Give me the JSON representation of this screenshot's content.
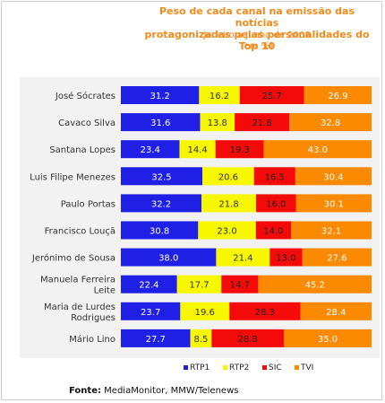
{
  "chart_data": {
    "type": "bar",
    "stacked": "100%",
    "orientation": "horizontal",
    "title": "Peso de cada canal na emissão das notícias\nprotagonizadas pelas personalidades do Top 10",
    "subtitle": "Janeiro a Junho de 2008\n(em %)",
    "categories": [
      "José Sócrates",
      "Cavaco Silva",
      "Santana Lopes",
      "Luis Filipe Menezes",
      "Paulo Portas",
      "Francisco Louçã",
      "Jerónimo de Sousa",
      "Manuela Ferreira\nLeite",
      "Maria de Lurdes\nRodrigues",
      "Mário Lino"
    ],
    "series": [
      {
        "name": "RTP1",
        "color": "#1f1fe6",
        "label_color": "#ffffff",
        "values": [
          31.2,
          31.6,
          23.4,
          32.5,
          32.2,
          30.8,
          38.0,
          22.4,
          23.7,
          27.7
        ]
      },
      {
        "name": "RTP2",
        "color": "#f7f700",
        "label_color": "#333333",
        "values": [
          16.2,
          13.8,
          14.4,
          20.6,
          21.8,
          23.0,
          21.4,
          17.7,
          19.6,
          8.5
        ]
      },
      {
        "name": "SIC",
        "color": "#f50a0a",
        "label_color": "#222222",
        "values": [
          25.7,
          21.8,
          19.3,
          16.5,
          16.0,
          14.0,
          13.0,
          14.7,
          28.3,
          28.8
        ]
      },
      {
        "name": "TVI",
        "color": "#fb8a00",
        "label_color": "#ffffff",
        "values": [
          26.9,
          32.8,
          43.0,
          30.4,
          30.1,
          32.1,
          27.6,
          45.2,
          28.4,
          35.0
        ]
      }
    ],
    "value_format": "0.0",
    "legend_position": "bottom",
    "grid": false
  },
  "source": {
    "label": "Fonte:",
    "text": " MediaMonitor, MMW/Telenews"
  }
}
